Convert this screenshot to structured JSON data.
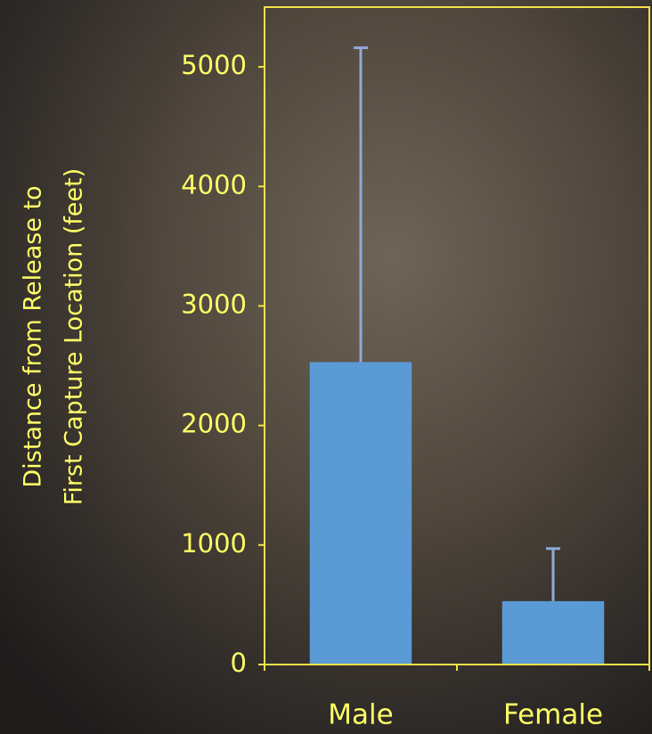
{
  "chart_data": {
    "type": "bar",
    "ylabel": [
      "Distance from Release to",
      "First Capture Location (feet)"
    ],
    "categories": [
      "Male",
      "Female"
    ],
    "values": [
      2530,
      530
    ],
    "errors": [
      2630,
      440
    ],
    "color": "#5b9bd5",
    "error_color": "#8eaadb",
    "ylim": [
      0,
      5500
    ],
    "yticks": [
      0,
      1000,
      2000,
      3000,
      4000,
      5000
    ],
    "grid": false
  }
}
